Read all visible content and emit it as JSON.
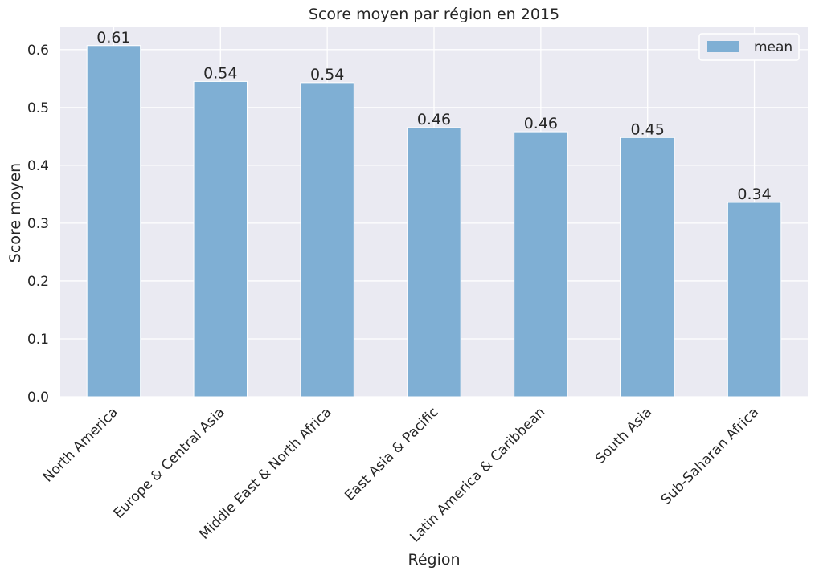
{
  "chart_data": {
    "type": "bar",
    "title": "Score moyen par région en 2015",
    "xlabel": "Région",
    "ylabel": "Score moyen",
    "categories": [
      "North America",
      "Europe & Central Asia",
      "Middle East & North Africa",
      "East Asia & Pacific",
      "Latin America & Caribbean",
      "South Asia",
      "Sub-Saharan Africa"
    ],
    "series": [
      {
        "name": "mean",
        "values": [
          0.607,
          0.545,
          0.543,
          0.465,
          0.458,
          0.448,
          0.336
        ],
        "labels": [
          "0.61",
          "0.54",
          "0.54",
          "0.46",
          "0.46",
          "0.45",
          "0.34"
        ],
        "color": "#7fafd4"
      }
    ],
    "ylim": [
      0,
      0.64
    ],
    "yticks": [
      0.0,
      0.1,
      0.2,
      0.3,
      0.4,
      0.5,
      0.6
    ],
    "ytick_labels": [
      "0.0",
      "0.1",
      "0.2",
      "0.3",
      "0.4",
      "0.5",
      "0.6"
    ],
    "grid": true,
    "legend_position": "top-right",
    "background": "#eaeaf2",
    "grid_color": "#ffffff"
  }
}
